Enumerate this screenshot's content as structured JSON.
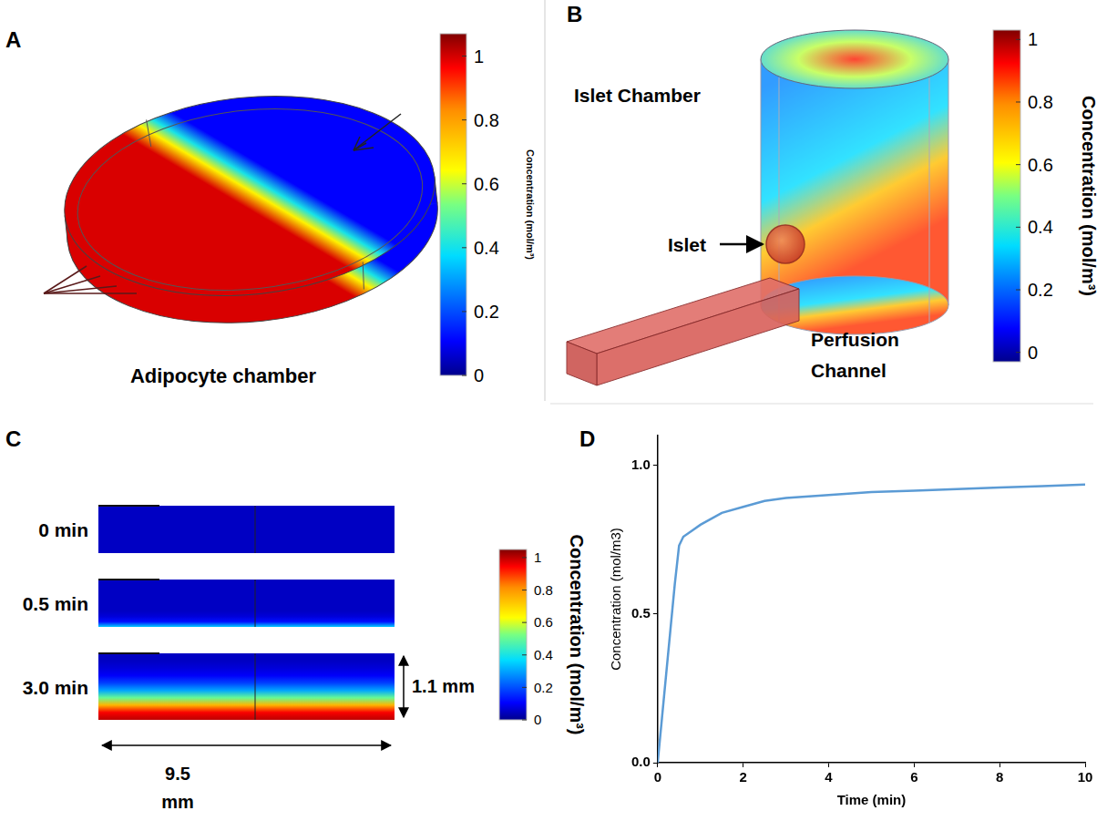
{
  "panels": [
    {
      "letter": "A",
      "title": "Adipocyte chamber",
      "colorbar": {
        "title": "Concentration (mol/m³)",
        "range": [
          0,
          1.07
        ],
        "ticks": [
          0,
          0.2,
          0.4,
          0.6,
          0.8,
          1
        ]
      }
    },
    {
      "letter": "B",
      "labels": {
        "chamber": "Islet Chamber",
        "islet": "Islet",
        "channel": "Perfusion Channel"
      },
      "colorbar": {
        "title": "Concentration (mol/m³)",
        "range": [
          -0.03,
          1.03
        ],
        "ticks": [
          0,
          0.2,
          0.4,
          0.6,
          0.8,
          1
        ]
      }
    },
    {
      "letter": "C",
      "frames": [
        {
          "label": "0 min",
          "profile": [
            0.05,
            0.05,
            0.05,
            0.05,
            0.05,
            0.05,
            0.05,
            0.05,
            0.05,
            0.05
          ]
        },
        {
          "label": "0.5 min",
          "profile": [
            0.35,
            0.12,
            0.07,
            0.05,
            0.05,
            0.05,
            0.05,
            0.05,
            0.05,
            0.05
          ]
        },
        {
          "label": "3.0 min",
          "profile": [
            1.0,
            0.95,
            0.75,
            0.5,
            0.3,
            0.18,
            0.1,
            0.07,
            0.05,
            0.05
          ]
        }
      ],
      "width_label": "9.5 mm",
      "height_label": "1.1 mm",
      "colorbar": {
        "title": "Concentration (mol/m³)",
        "range": [
          0,
          1.05
        ],
        "ticks": [
          0,
          0.2,
          0.4,
          0.6,
          0.8,
          1
        ]
      }
    }
  ],
  "chart_data": {
    "letter": "D",
    "type": "line",
    "x": [
      0,
      0.1,
      0.2,
      0.3,
      0.4,
      0.5,
      0.6,
      0.8,
      1,
      1.5,
      2,
      2.5,
      3,
      4,
      5,
      6,
      7,
      8,
      9,
      10
    ],
    "values": [
      0,
      0.15,
      0.3,
      0.45,
      0.6,
      0.73,
      0.76,
      0.78,
      0.8,
      0.84,
      0.86,
      0.88,
      0.89,
      0.9,
      0.91,
      0.915,
      0.92,
      0.925,
      0.93,
      0.935
    ],
    "color": "#5b9bd5",
    "x_label": "Time (min)",
    "y_label": "Concentration (mol/m3)",
    "xlim": [
      0,
      10
    ],
    "xticks": [
      0,
      2,
      4,
      6,
      8,
      10
    ],
    "ylim": [
      0,
      1.1
    ],
    "yticks": [
      {
        "value": 0,
        "label": "0.0"
      },
      0.5,
      {
        "value": 1,
        "label": "1.0"
      }
    ],
    "grid": false
  }
}
